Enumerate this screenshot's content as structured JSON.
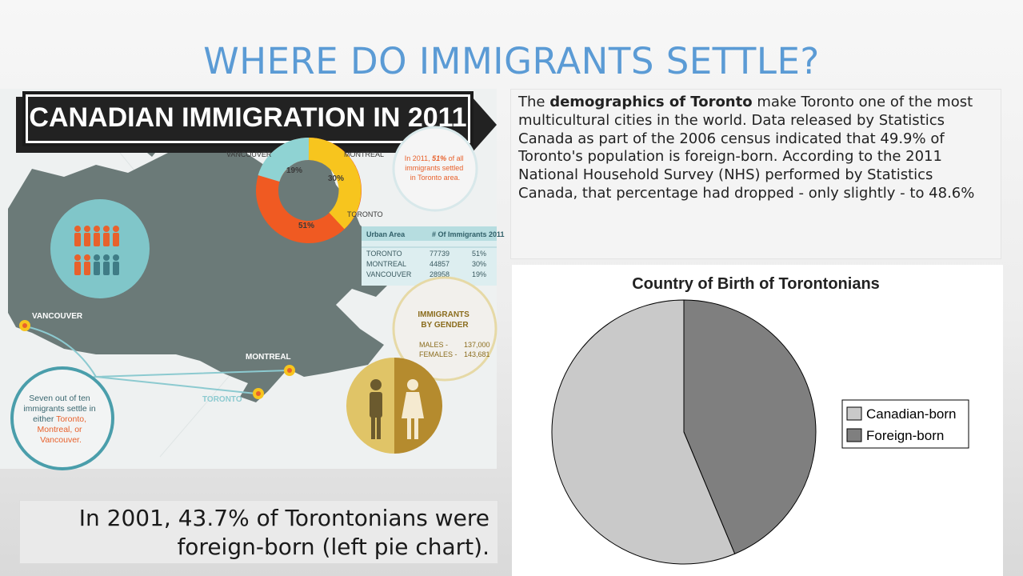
{
  "slide": {
    "title": "WHERE DO IMMIGRANTS SETTLE?",
    "description": {
      "part1": "The ",
      "bold": "demographics of Toronto",
      "part2": " make Toronto one of the most multicultural cities in the world. Data released by Statistics Canada as part of the 2006 census indicated that 49.9% of Toronto's population is foreign-born. According to the 2011 National Household Survey (NHS) performed by Statistics Canada, that percentage had dropped - only slightly - to 48.6%"
    },
    "caption": "In 2001, 43.7% of Torontonians were foreign-born (left pie chart)."
  },
  "infographic": {
    "banner": "CANADIAN IMMIGRATION IN 2011",
    "donut_labels": {
      "vancouver": "VANCOUVER",
      "montreal": "MONTREAL",
      "toronto": "TORONTO"
    },
    "donut_values": [
      {
        "city": "TORONTO",
        "value": 51,
        "label": "51%",
        "color": "#f05a22"
      },
      {
        "city": "MONTREAL",
        "value": 30,
        "label": "30%",
        "color": "#f7c51e"
      },
      {
        "city": "VANCOUVER",
        "value": 19,
        "label": "19%",
        "color": "#8fd3d3"
      }
    ],
    "note": {
      "line1": "In 2011, ",
      "bold": "51%",
      "line1b": " of all",
      "line2": "immigrants settled",
      "line3": "in Toronto area."
    },
    "table": {
      "headers": [
        "Urban Area",
        "# Of Immigrants 2011"
      ],
      "rows": [
        [
          "TORONTO",
          "77739",
          "51%"
        ],
        [
          "MONTREAL",
          "44857",
          "30%"
        ],
        [
          "VANCOUVER",
          "28958",
          "19%"
        ]
      ]
    },
    "map_labels": {
      "vancouver": "VANCOUVER",
      "montreal": "MONTREAL",
      "toronto": "TORONTO"
    },
    "gender": {
      "title1": "IMMIGRANTS",
      "title2": "BY GENDER",
      "males_label": "MALES -",
      "males_value": "137,000",
      "females_label": "FEMALES -",
      "females_value": "143,681"
    },
    "circle_text": {
      "l1": "Seven out of ten",
      "l2": "immigrants settle in",
      "l3a": "either ",
      "l3b": "Toronto,",
      "l4": "Montreal, or",
      "l5": "Vancouver."
    },
    "colors": {
      "teal": "#4a9eab",
      "orange": "#e8612c",
      "map": "#6b7a78",
      "gold": "#c9a13b"
    }
  },
  "chart_data": {
    "type": "pie",
    "title": "Country of Birth of Torontonians",
    "categories": [
      "Canadian-born",
      "Foreign-born"
    ],
    "values": [
      56.3,
      43.7
    ],
    "colors": [
      "#c9c9c9",
      "#7f7f7f"
    ],
    "legend_position": "right"
  }
}
